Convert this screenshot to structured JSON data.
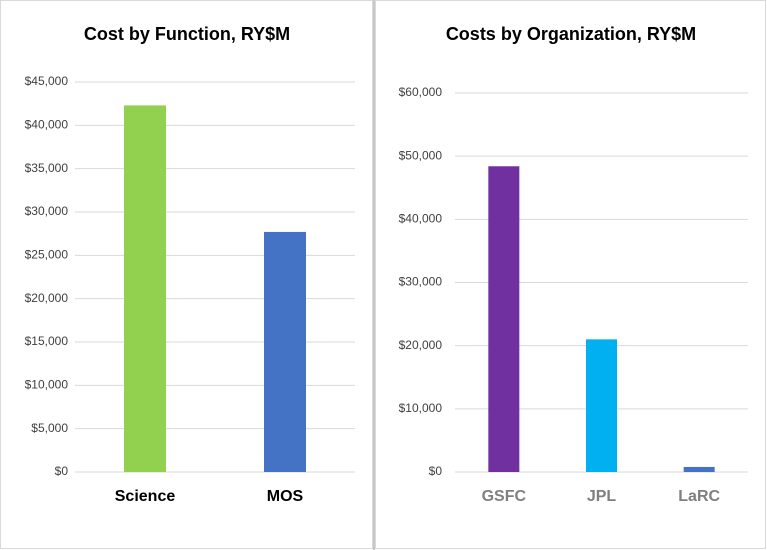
{
  "chart_data": [
    {
      "type": "bar",
      "title": "Cost by Function, RY$M",
      "categories": [
        "Science",
        "MOS"
      ],
      "values": [
        42300,
        27700
      ],
      "colors": [
        "#92d050",
        "#4472c4"
      ],
      "ylim": [
        0,
        45000
      ],
      "yticks": [
        {
          "value": 0,
          "label": "$0"
        },
        {
          "value": 5000,
          "label": "$5,000"
        },
        {
          "value": 10000,
          "label": "$10,000"
        },
        {
          "value": 15000,
          "label": "$15,000"
        },
        {
          "value": 20000,
          "label": "$20,000"
        },
        {
          "value": 25000,
          "label": "$25,000"
        },
        {
          "value": 30000,
          "label": "$30,000"
        },
        {
          "value": 35000,
          "label": "$35,000"
        },
        {
          "value": 40000,
          "label": "$40,000"
        },
        {
          "value": 45000,
          "label": "$45,000"
        }
      ],
      "grid": true
    },
    {
      "type": "bar",
      "title": "Costs by Organization, RY$M",
      "categories": [
        "GSFC",
        "JPL",
        "LaRC"
      ],
      "values": [
        48400,
        21000,
        800
      ],
      "colors": [
        "#7030a0",
        "#00b0f0",
        "#4472c4"
      ],
      "ylim": [
        0,
        60000
      ],
      "yticks": [
        {
          "value": 0,
          "label": "$0"
        },
        {
          "value": 10000,
          "label": "$10,000"
        },
        {
          "value": 20000,
          "label": "$20,000"
        },
        {
          "value": 30000,
          "label": "$30,000"
        },
        {
          "value": 40000,
          "label": "$40,000"
        },
        {
          "value": 50000,
          "label": "$50,000"
        },
        {
          "value": 60000,
          "label": "$60,000"
        }
      ],
      "grid": true
    }
  ]
}
